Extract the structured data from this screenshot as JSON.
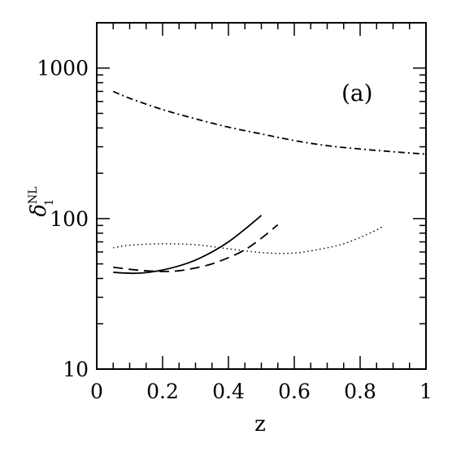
{
  "chart_data": {
    "type": "line",
    "xlabel": "z",
    "ylabel": {
      "main": "δ",
      "sub": "1",
      "sup": "NL"
    },
    "annotation": "(a)",
    "xlim": [
      0,
      1
    ],
    "ylim": [
      10,
      2000
    ],
    "yscale": "log",
    "grid": false,
    "x_ticks": [
      0,
      0.2,
      0.4,
      0.6,
      0.8,
      1
    ],
    "x_tick_labels": [
      "0",
      "0.2",
      "0.4",
      "0.6",
      "0.8",
      "1"
    ],
    "y_ticks": [
      10,
      100,
      1000
    ],
    "y_tick_labels": [
      "10",
      "100",
      "1000"
    ],
    "series": [
      {
        "style": "dotdash",
        "x": [
          0.05,
          0.1,
          0.2,
          0.3,
          0.4,
          0.5,
          0.6,
          0.7,
          0.8,
          0.9,
          1.0
        ],
        "y": [
          700,
          630,
          530,
          460,
          405,
          365,
          330,
          305,
          290,
          278,
          268
        ]
      },
      {
        "style": "solid",
        "x": [
          0.05,
          0.08,
          0.12,
          0.16,
          0.2,
          0.25,
          0.3,
          0.35,
          0.4,
          0.45,
          0.5
        ],
        "y": [
          44,
          43.5,
          43.3,
          44,
          45.5,
          48.5,
          53,
          60,
          70,
          85,
          105
        ]
      },
      {
        "style": "dashed",
        "x": [
          0.05,
          0.1,
          0.15,
          0.2,
          0.25,
          0.3,
          0.35,
          0.4,
          0.45,
          0.5,
          0.55
        ],
        "y": [
          47.5,
          46,
          45,
          44.5,
          45,
          47,
          50,
          55,
          62,
          74,
          91
        ]
      },
      {
        "style": "dotted",
        "x": [
          0.05,
          0.1,
          0.2,
          0.3,
          0.4,
          0.5,
          0.6,
          0.7,
          0.75,
          0.8,
          0.85,
          0.87
        ],
        "y": [
          64,
          66.5,
          68,
          67,
          63,
          59.5,
          59,
          64,
          68,
          75,
          84,
          89
        ]
      }
    ]
  }
}
